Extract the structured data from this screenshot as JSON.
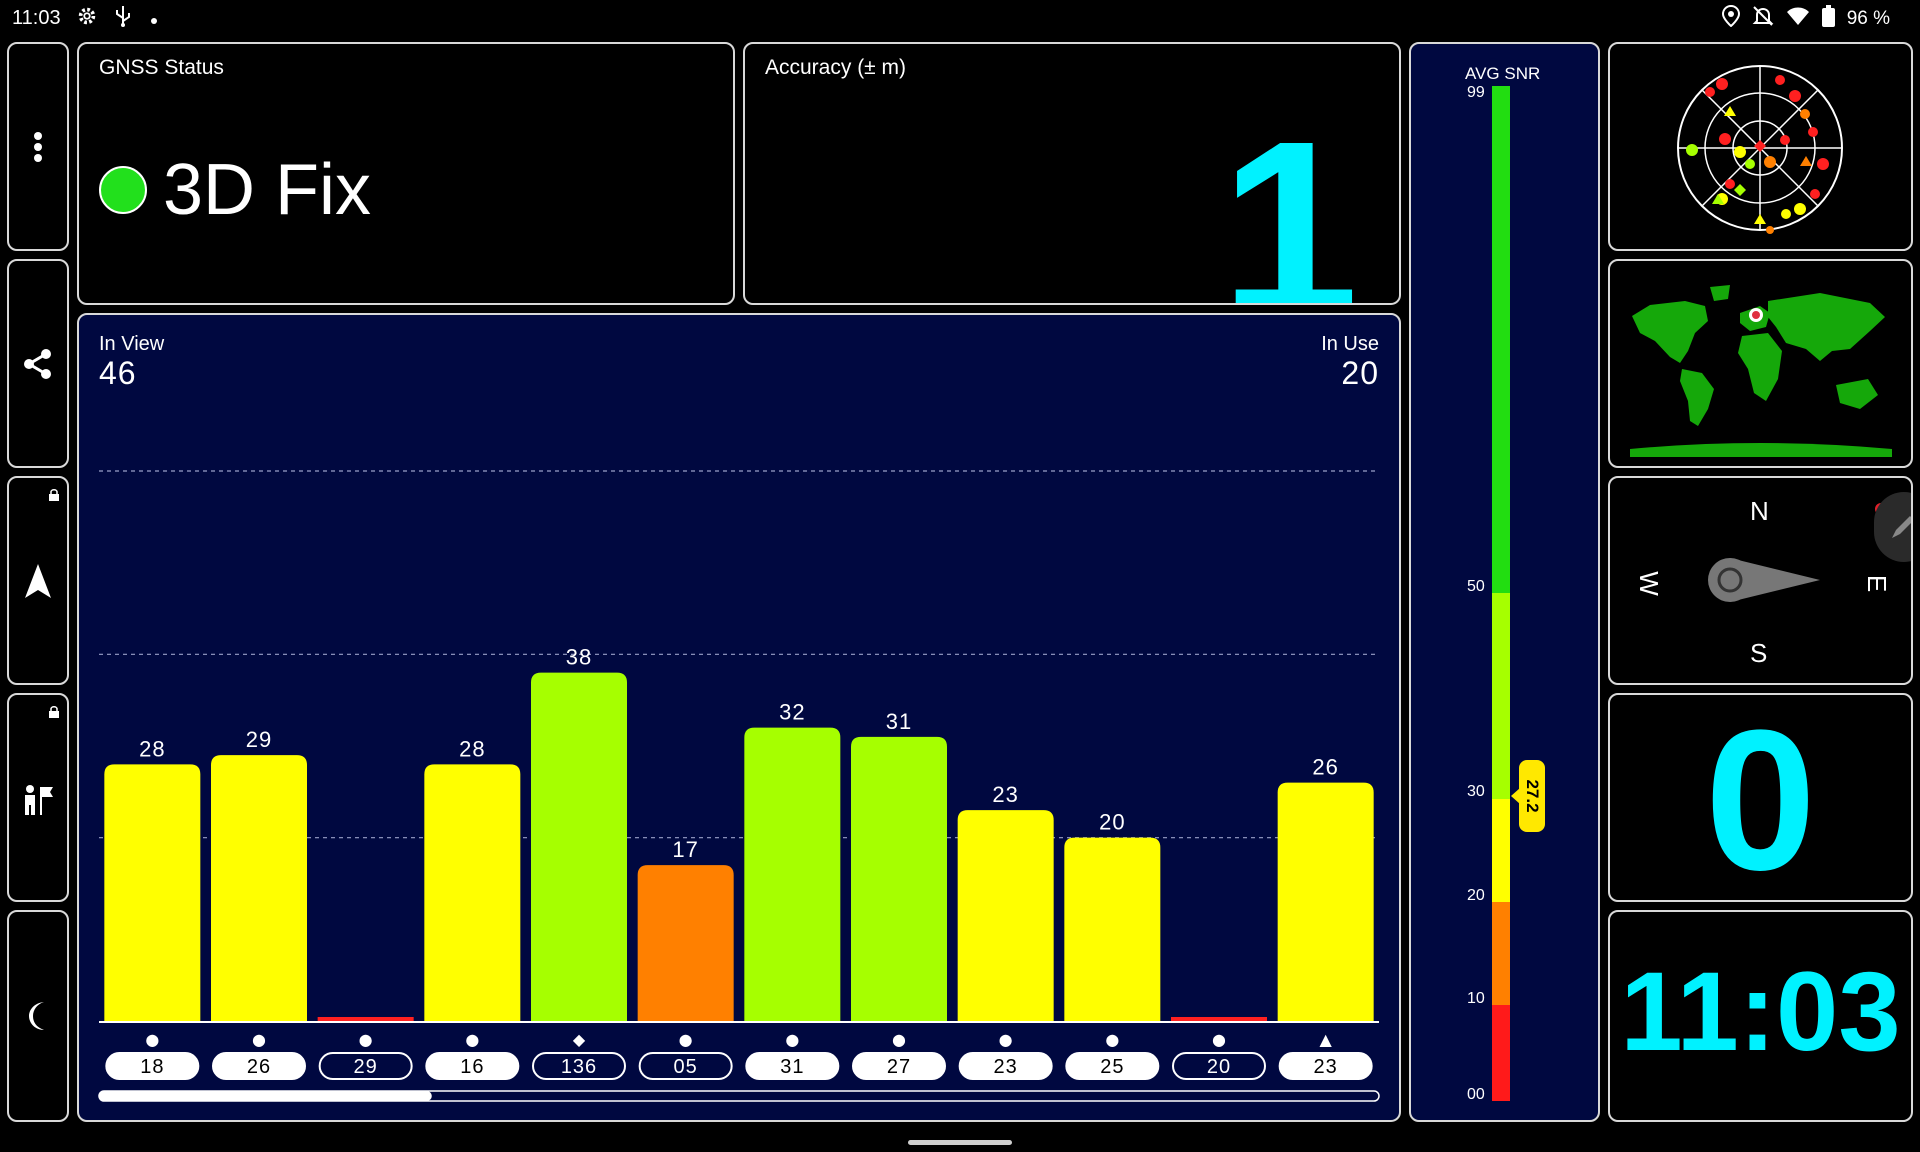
{
  "status_bar": {
    "time": "11:03",
    "battery": "96 %"
  },
  "gnss_status": {
    "title": "GNSS Status",
    "fix": "3D Fix",
    "fix_color": "#22e01c"
  },
  "accuracy": {
    "title": "Accuracy (± m)",
    "value": "1"
  },
  "satellites": {
    "in_view_label": "In View",
    "in_view": "46",
    "in_use_label": "In Use",
    "in_use": "20",
    "scroll_fraction": 0.26,
    "y_max": 50
  },
  "chart_data": {
    "type": "bar",
    "categories": [
      "18",
      "26",
      "29",
      "16",
      "136",
      "05",
      "31",
      "27",
      "23",
      "25",
      "20",
      "23"
    ],
    "values": [
      28,
      29,
      0,
      28,
      38,
      17,
      32,
      31,
      23,
      20,
      0,
      26
    ],
    "labels": [
      "28",
      "29",
      "",
      "28",
      "38",
      "17",
      "32",
      "31",
      "23",
      "20",
      "",
      "26"
    ],
    "symbols": [
      "●",
      "●",
      "●",
      "●",
      "◆",
      "●",
      "●",
      "●",
      "●",
      "●",
      "●",
      "▲"
    ],
    "in_use": [
      true,
      true,
      false,
      true,
      false,
      false,
      true,
      true,
      true,
      true,
      false,
      true
    ],
    "colors": [
      "#ffff00",
      "#ffff00",
      "#ff2020",
      "#ffff00",
      "#a6ff00",
      "#ff8000",
      "#a6ff00",
      "#a6ff00",
      "#ffff00",
      "#ffff00",
      "#ff2020",
      "#ffff00"
    ],
    "ylim": [
      0,
      60
    ]
  },
  "snr": {
    "title": "AVG SNR",
    "ticks": [
      "99",
      "50",
      "30",
      "20",
      "10",
      "00"
    ],
    "average": "27.2"
  },
  "compass": {
    "n": "N",
    "e": "E",
    "s": "S",
    "w": "W",
    "heading_deg": 90
  },
  "speed": {
    "value": "0"
  },
  "clock": {
    "value": "11:03"
  },
  "colors": {
    "cyan": "#00f2ff",
    "navy": "#000840",
    "green": "#22e01c"
  }
}
